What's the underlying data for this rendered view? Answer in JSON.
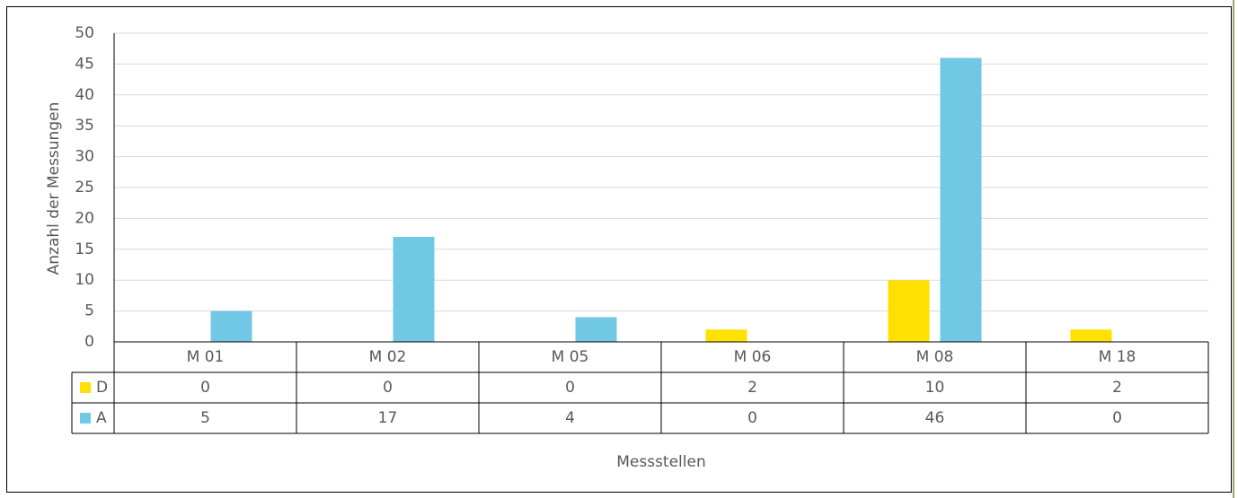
{
  "chart_data": {
    "type": "bar",
    "x_label": "Messstellen",
    "y_label": "Anzahl der Messungen",
    "categories": [
      "M 01",
      "M 02",
      "M 05",
      "M 06",
      "M 08",
      "M 18"
    ],
    "series": [
      {
        "name": "D",
        "color": "#ffe000",
        "values": [
          0,
          0,
          0,
          2,
          10,
          2
        ]
      },
      {
        "name": "A",
        "color": "#70c8e4",
        "values": [
          5,
          17,
          4,
          0,
          46,
          0
        ]
      }
    ],
    "ylim": [
      0,
      50
    ],
    "yticks": [
      0,
      5,
      10,
      15,
      20,
      25,
      30,
      35,
      40,
      45,
      50
    ],
    "grid": true,
    "data_table": true
  }
}
